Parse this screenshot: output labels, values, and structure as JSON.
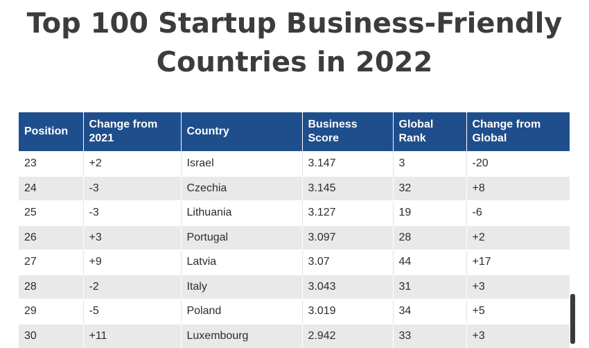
{
  "title": {
    "line1": "Top 100 Startup Business-Friendly",
    "line2": "Countries in 2022"
  },
  "table": {
    "headers": {
      "position": "Position",
      "change_2021": [
        "Change from",
        "2021"
      ],
      "country": "Country",
      "business_score": [
        "Business",
        "Score"
      ],
      "global_rank": [
        "Global",
        "Rank"
      ],
      "change_global": [
        "Change from",
        "Global"
      ]
    },
    "rows": [
      {
        "position": "23",
        "change_2021": "+2",
        "country": "Israel",
        "score": "3.147",
        "global_rank": "3",
        "change_global": "-20"
      },
      {
        "position": "24",
        "change_2021": "-3",
        "country": "Czechia",
        "score": "3.145",
        "global_rank": "32",
        "change_global": "+8"
      },
      {
        "position": "25",
        "change_2021": "-3",
        "country": "Lithuania",
        "score": "3.127",
        "global_rank": "19",
        "change_global": "-6"
      },
      {
        "position": "26",
        "change_2021": "+3",
        "country": "Portugal",
        "score": "3.097",
        "global_rank": "28",
        "change_global": "+2"
      },
      {
        "position": "27",
        "change_2021": "+9",
        "country": "Latvia",
        "score": "3.07",
        "global_rank": "44",
        "change_global": "+17"
      },
      {
        "position": "28",
        "change_2021": "-2",
        "country": "Italy",
        "score": "3.043",
        "global_rank": "31",
        "change_global": "+3"
      },
      {
        "position": "29",
        "change_2021": "-5",
        "country": "Poland",
        "score": "3.019",
        "global_rank": "34",
        "change_global": "+5"
      },
      {
        "position": "30",
        "change_2021": "+11",
        "country": "Luxembourg",
        "score": "2.942",
        "global_rank": "33",
        "change_global": "+3"
      }
    ]
  },
  "colors": {
    "header_bg": "#1f4e8c",
    "header_text": "#ffffff",
    "row_alt_bg": "#e9e9e9",
    "title_text": "#3c3c3c"
  }
}
